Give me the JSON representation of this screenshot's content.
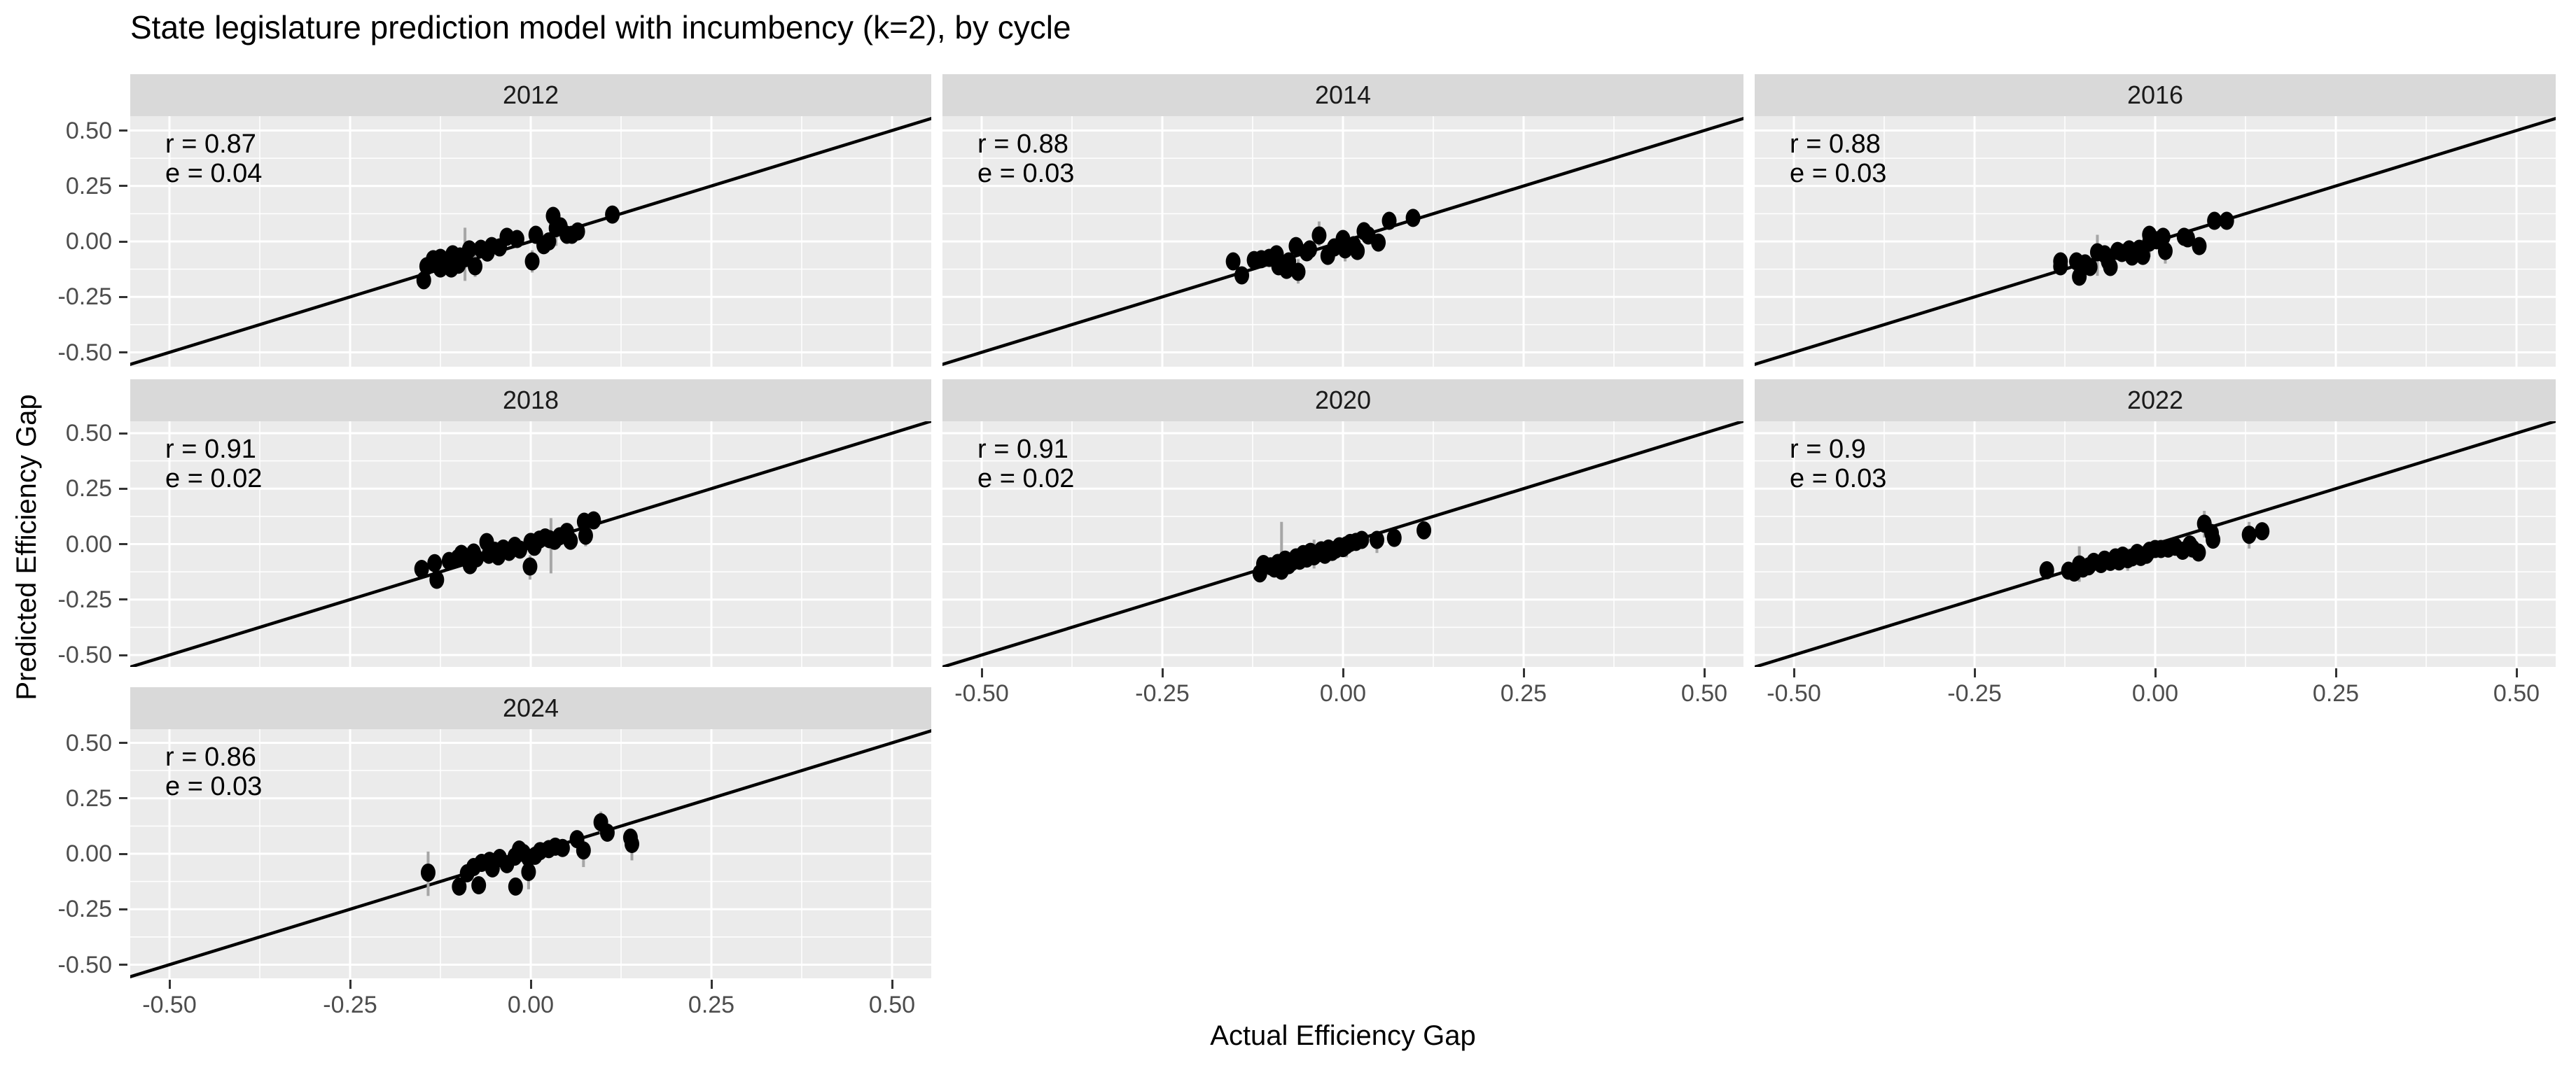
{
  "title": "State legislature prediction model with incumbency (k=2), by cycle",
  "axes": {
    "x_label": "Actual Efficiency Gap",
    "y_label": "Predicted Efficiency Gap",
    "x_tick_labels": [
      "-0.50",
      "-0.25",
      "0.00",
      "0.25",
      "0.50"
    ],
    "x_tick_values": [
      -0.5,
      -0.25,
      0.0,
      0.25,
      0.5
    ],
    "y_tick_labels": [
      "0.50",
      "0.25",
      "0.00",
      "-0.25",
      "-0.50"
    ],
    "y_tick_values": [
      0.5,
      0.25,
      0.0,
      -0.25,
      -0.5
    ]
  },
  "colors": {
    "panel_bg": "#ebebeb",
    "strip_bg": "#d9d9d9",
    "grid": "#ffffff",
    "point": "#000000",
    "identity_line": "#000000",
    "error_bar": "#a6a6a6",
    "tick_text": "#4d4d4d",
    "strip_text": "#1a1a1a",
    "title_text": "#000000"
  },
  "chart_data": {
    "type": "scatter",
    "title": "State legislature prediction model with incumbency (k=2), by cycle",
    "xlabel": "Actual Efficiency Gap",
    "ylabel": "Predicted Efficiency Gap",
    "xlim": [
      -0.554,
      0.554
    ],
    "ylim": [
      -0.565,
      0.565
    ],
    "grid": true,
    "major_gridlines": [
      -0.5,
      -0.25,
      0.0,
      0.25,
      0.5
    ],
    "minor_gridlines": [
      -0.375,
      -0.125,
      0.125,
      0.375
    ],
    "identity_line": true,
    "facets": [
      {
        "label": "2012",
        "r": "0.87",
        "e": "0.04",
        "annotation_lines": [
          "r = 0.87",
          "e = 0.04"
        ],
        "points": [
          [
            -0.148,
            -0.175
          ],
          [
            -0.144,
            -0.112
          ],
          [
            -0.135,
            -0.08
          ],
          [
            -0.125,
            -0.122
          ],
          [
            -0.125,
            -0.074
          ],
          [
            -0.115,
            -0.095
          ],
          [
            -0.11,
            -0.122
          ],
          [
            -0.108,
            -0.058
          ],
          [
            -0.1,
            -0.105
          ],
          [
            -0.098,
            -0.068
          ],
          [
            -0.09,
            -0.075
          ],
          [
            -0.085,
            -0.036
          ],
          [
            -0.077,
            -0.112
          ],
          [
            -0.069,
            -0.033
          ],
          [
            -0.06,
            -0.05
          ],
          [
            -0.054,
            -0.021
          ],
          [
            -0.043,
            -0.027
          ],
          [
            -0.033,
            0.021
          ],
          [
            -0.019,
            0.011
          ],
          [
            0.002,
            -0.09
          ],
          [
            0.007,
            0.03
          ],
          [
            0.018,
            -0.017
          ],
          [
            0.025,
            0.0
          ],
          [
            0.031,
            0.115
          ],
          [
            0.035,
            0.06
          ],
          [
            0.041,
            0.068
          ],
          [
            0.05,
            0.03
          ],
          [
            0.057,
            0.03
          ],
          [
            0.065,
            0.045
          ],
          [
            0.113,
            0.121
          ]
        ],
        "error_bars": [
          [
            -0.091,
            -0.178,
            0.062
          ],
          [
            -0.077,
            -0.16,
            -0.06
          ],
          [
            0.002,
            -0.14,
            -0.04
          ],
          [
            0.035,
            -0.02,
            0.1
          ]
        ]
      },
      {
        "label": "2014",
        "r": "0.88",
        "e": "0.03",
        "annotation_lines": [
          "r = 0.88",
          "e = 0.03"
        ],
        "points": [
          [
            -0.152,
            -0.09
          ],
          [
            -0.14,
            -0.153
          ],
          [
            -0.123,
            -0.084
          ],
          [
            -0.113,
            -0.08
          ],
          [
            -0.102,
            -0.074
          ],
          [
            -0.092,
            -0.058
          ],
          [
            -0.089,
            -0.112
          ],
          [
            -0.078,
            -0.128
          ],
          [
            -0.075,
            -0.09
          ],
          [
            -0.065,
            -0.021
          ],
          [
            -0.062,
            -0.137
          ],
          [
            -0.05,
            -0.049
          ],
          [
            -0.046,
            -0.036
          ],
          [
            -0.033,
            0.027
          ],
          [
            -0.021,
            -0.065
          ],
          [
            -0.012,
            -0.027
          ],
          [
            0.0,
            0.011
          ],
          [
            0.003,
            -0.036
          ],
          [
            0.015,
            -0.017
          ],
          [
            0.02,
            -0.043
          ],
          [
            0.029,
            0.046
          ],
          [
            0.035,
            0.027
          ],
          [
            0.049,
            -0.005
          ],
          [
            0.064,
            0.093
          ],
          [
            0.097,
            0.106
          ]
        ],
        "error_bars": [
          [
            -0.062,
            -0.19,
            -0.08
          ],
          [
            -0.033,
            -0.02,
            0.09
          ],
          [
            0.003,
            -0.09,
            0.01
          ]
        ]
      },
      {
        "label": "2016",
        "r": "0.88",
        "e": "0.03",
        "annotation_lines": [
          "r = 0.88",
          "e = 0.03"
        ],
        "points": [
          [
            -0.131,
            -0.09
          ],
          [
            -0.131,
            -0.112
          ],
          [
            -0.109,
            -0.09
          ],
          [
            -0.105,
            -0.159
          ],
          [
            -0.097,
            -0.099
          ],
          [
            -0.09,
            -0.115
          ],
          [
            -0.08,
            -0.049
          ],
          [
            -0.07,
            -0.058
          ],
          [
            -0.065,
            -0.09
          ],
          [
            -0.062,
            -0.115
          ],
          [
            -0.052,
            -0.043
          ],
          [
            -0.046,
            -0.052
          ],
          [
            -0.036,
            -0.036
          ],
          [
            -0.032,
            -0.068
          ],
          [
            -0.022,
            -0.033
          ],
          [
            -0.017,
            -0.065
          ],
          [
            -0.008,
            0.03
          ],
          [
            -0.008,
            -0.005
          ],
          [
            0.002,
            0.005
          ],
          [
            0.011,
            0.021
          ],
          [
            0.014,
            -0.043
          ],
          [
            0.04,
            0.021
          ],
          [
            0.045,
            0.014
          ],
          [
            0.061,
            -0.021
          ],
          [
            0.082,
            0.093
          ],
          [
            0.099,
            0.093
          ]
        ],
        "error_bars": [
          [
            -0.08,
            -0.155,
            0.03
          ],
          [
            -0.008,
            -0.07,
            0.04
          ],
          [
            0.014,
            -0.1,
            0.0
          ]
        ]
      },
      {
        "label": "2018",
        "r": "0.91",
        "e": "0.02",
        "annotation_lines": [
          "r = 0.91",
          "e = 0.02"
        ],
        "points": [
          [
            -0.151,
            -0.112
          ],
          [
            -0.133,
            -0.086
          ],
          [
            -0.13,
            -0.161
          ],
          [
            -0.113,
            -0.076
          ],
          [
            -0.101,
            -0.064
          ],
          [
            -0.096,
            -0.044
          ],
          [
            -0.084,
            -0.095
          ],
          [
            -0.079,
            -0.038
          ],
          [
            -0.075,
            -0.064
          ],
          [
            -0.061,
            0.009
          ],
          [
            -0.058,
            -0.048
          ],
          [
            -0.05,
            -0.03
          ],
          [
            -0.045,
            -0.055
          ],
          [
            -0.038,
            -0.02
          ],
          [
            -0.03,
            -0.035
          ],
          [
            -0.022,
            -0.008
          ],
          [
            -0.015,
            -0.025
          ],
          [
            -0.001,
            -0.101
          ],
          [
            0.0,
            0.01
          ],
          [
            0.005,
            -0.012
          ],
          [
            0.012,
            0.02
          ],
          [
            0.02,
            0.03
          ],
          [
            0.026,
            0.022
          ],
          [
            0.033,
            0.015
          ],
          [
            0.04,
            0.035
          ],
          [
            0.05,
            0.055
          ],
          [
            0.055,
            0.015
          ],
          [
            0.076,
            0.038
          ],
          [
            0.074,
            0.101
          ],
          [
            0.087,
            0.107
          ]
        ],
        "error_bars": [
          [
            0.028,
            -0.132,
            0.117
          ],
          [
            -0.001,
            -0.16,
            -0.05
          ],
          [
            0.076,
            -0.01,
            0.09
          ]
        ]
      },
      {
        "label": "2020",
        "r": "0.91",
        "e": "0.02",
        "annotation_lines": [
          "r = 0.91",
          "e = 0.02"
        ],
        "points": [
          [
            -0.115,
            -0.132
          ],
          [
            -0.11,
            -0.09
          ],
          [
            -0.1,
            -0.1
          ],
          [
            -0.095,
            -0.11
          ],
          [
            -0.09,
            -0.085
          ],
          [
            -0.085,
            -0.12
          ],
          [
            -0.08,
            -0.07
          ],
          [
            -0.075,
            -0.095
          ],
          [
            -0.07,
            -0.08
          ],
          [
            -0.065,
            -0.06
          ],
          [
            -0.06,
            -0.075
          ],
          [
            -0.055,
            -0.045
          ],
          [
            -0.05,
            -0.065
          ],
          [
            -0.045,
            -0.035
          ],
          [
            -0.04,
            -0.055
          ],
          [
            -0.035,
            -0.042
          ],
          [
            -0.03,
            -0.028
          ],
          [
            -0.025,
            -0.048
          ],
          [
            -0.02,
            -0.02
          ],
          [
            -0.015,
            -0.035
          ],
          [
            -0.01,
            -0.025
          ],
          [
            -0.005,
            -0.01
          ],
          [
            0.0,
            -0.018
          ],
          [
            0.005,
            -0.005
          ],
          [
            0.01,
            0.005
          ],
          [
            0.018,
            0.01
          ],
          [
            0.026,
            0.019
          ],
          [
            0.047,
            0.019
          ],
          [
            0.071,
            0.028
          ],
          [
            0.112,
            0.062
          ]
        ],
        "error_bars": [
          [
            -0.085,
            -0.05,
            0.1
          ],
          [
            -0.04,
            -0.11,
            0.02
          ],
          [
            0.005,
            -0.06,
            0.03
          ],
          [
            0.047,
            -0.04,
            0.06
          ]
        ]
      },
      {
        "label": "2022",
        "r": "0.9",
        "e": "0.03",
        "annotation_lines": [
          "r = 0.9",
          "e = 0.03"
        ],
        "points": [
          [
            -0.15,
            -0.118
          ],
          [
            -0.12,
            -0.12
          ],
          [
            -0.112,
            -0.128
          ],
          [
            -0.105,
            -0.092
          ],
          [
            -0.1,
            -0.11
          ],
          [
            -0.092,
            -0.1
          ],
          [
            -0.085,
            -0.08
          ],
          [
            -0.075,
            -0.09
          ],
          [
            -0.07,
            -0.07
          ],
          [
            -0.062,
            -0.08
          ],
          [
            -0.055,
            -0.06
          ],
          [
            -0.05,
            -0.078
          ],
          [
            -0.045,
            -0.052
          ],
          [
            -0.038,
            -0.068
          ],
          [
            -0.032,
            -0.06
          ],
          [
            -0.025,
            -0.04
          ],
          [
            -0.02,
            -0.058
          ],
          [
            -0.012,
            -0.048
          ],
          [
            -0.008,
            -0.03
          ],
          [
            0.0,
            -0.022
          ],
          [
            0.008,
            -0.022
          ],
          [
            0.018,
            -0.02
          ],
          [
            0.028,
            -0.012
          ],
          [
            0.038,
            -0.03
          ],
          [
            0.048,
            -0.002
          ],
          [
            0.052,
            -0.02
          ],
          [
            0.06,
            -0.038
          ],
          [
            0.068,
            0.092
          ],
          [
            0.078,
            0.05
          ],
          [
            0.08,
            0.02
          ],
          [
            0.13,
            0.042
          ],
          [
            0.148,
            0.058
          ]
        ],
        "error_bars": [
          [
            -0.105,
            -0.17,
            -0.01
          ],
          [
            -0.038,
            -0.12,
            -0.02
          ],
          [
            0.048,
            -0.06,
            0.04
          ],
          [
            0.068,
            0.03,
            0.15
          ],
          [
            0.13,
            -0.02,
            0.1
          ]
        ]
      },
      {
        "label": "2024",
        "r": "0.86",
        "e": "0.03",
        "annotation_lines": [
          "r = 0.86",
          "e = 0.03"
        ],
        "points": [
          [
            -0.142,
            -0.085
          ],
          [
            -0.099,
            -0.148
          ],
          [
            -0.088,
            -0.088
          ],
          [
            -0.079,
            -0.06
          ],
          [
            -0.072,
            -0.142
          ],
          [
            -0.068,
            -0.041
          ],
          [
            -0.057,
            -0.032
          ],
          [
            -0.053,
            -0.066
          ],
          [
            -0.043,
            -0.019
          ],
          [
            -0.033,
            -0.047
          ],
          [
            -0.022,
            -0.013
          ],
          [
            -0.021,
            -0.148
          ],
          [
            -0.016,
            0.019
          ],
          [
            -0.01,
            0.003
          ],
          [
            -0.003,
            -0.019
          ],
          [
            -0.003,
            -0.082
          ],
          [
            0.006,
            -0.009
          ],
          [
            0.013,
            0.012
          ],
          [
            0.025,
            0.021
          ],
          [
            0.034,
            0.032
          ],
          [
            0.044,
            0.026
          ],
          [
            0.064,
            0.066
          ],
          [
            0.073,
            0.015
          ],
          [
            0.097,
            0.142
          ],
          [
            0.106,
            0.095
          ],
          [
            0.138,
            0.073
          ],
          [
            0.14,
            0.044
          ]
        ],
        "error_bars": [
          [
            -0.142,
            -0.19,
            0.01
          ],
          [
            -0.003,
            -0.16,
            0.0
          ],
          [
            0.073,
            -0.06,
            0.06
          ],
          [
            0.14,
            -0.03,
            0.09
          ],
          [
            0.097,
            0.09,
            0.19
          ]
        ]
      }
    ]
  }
}
